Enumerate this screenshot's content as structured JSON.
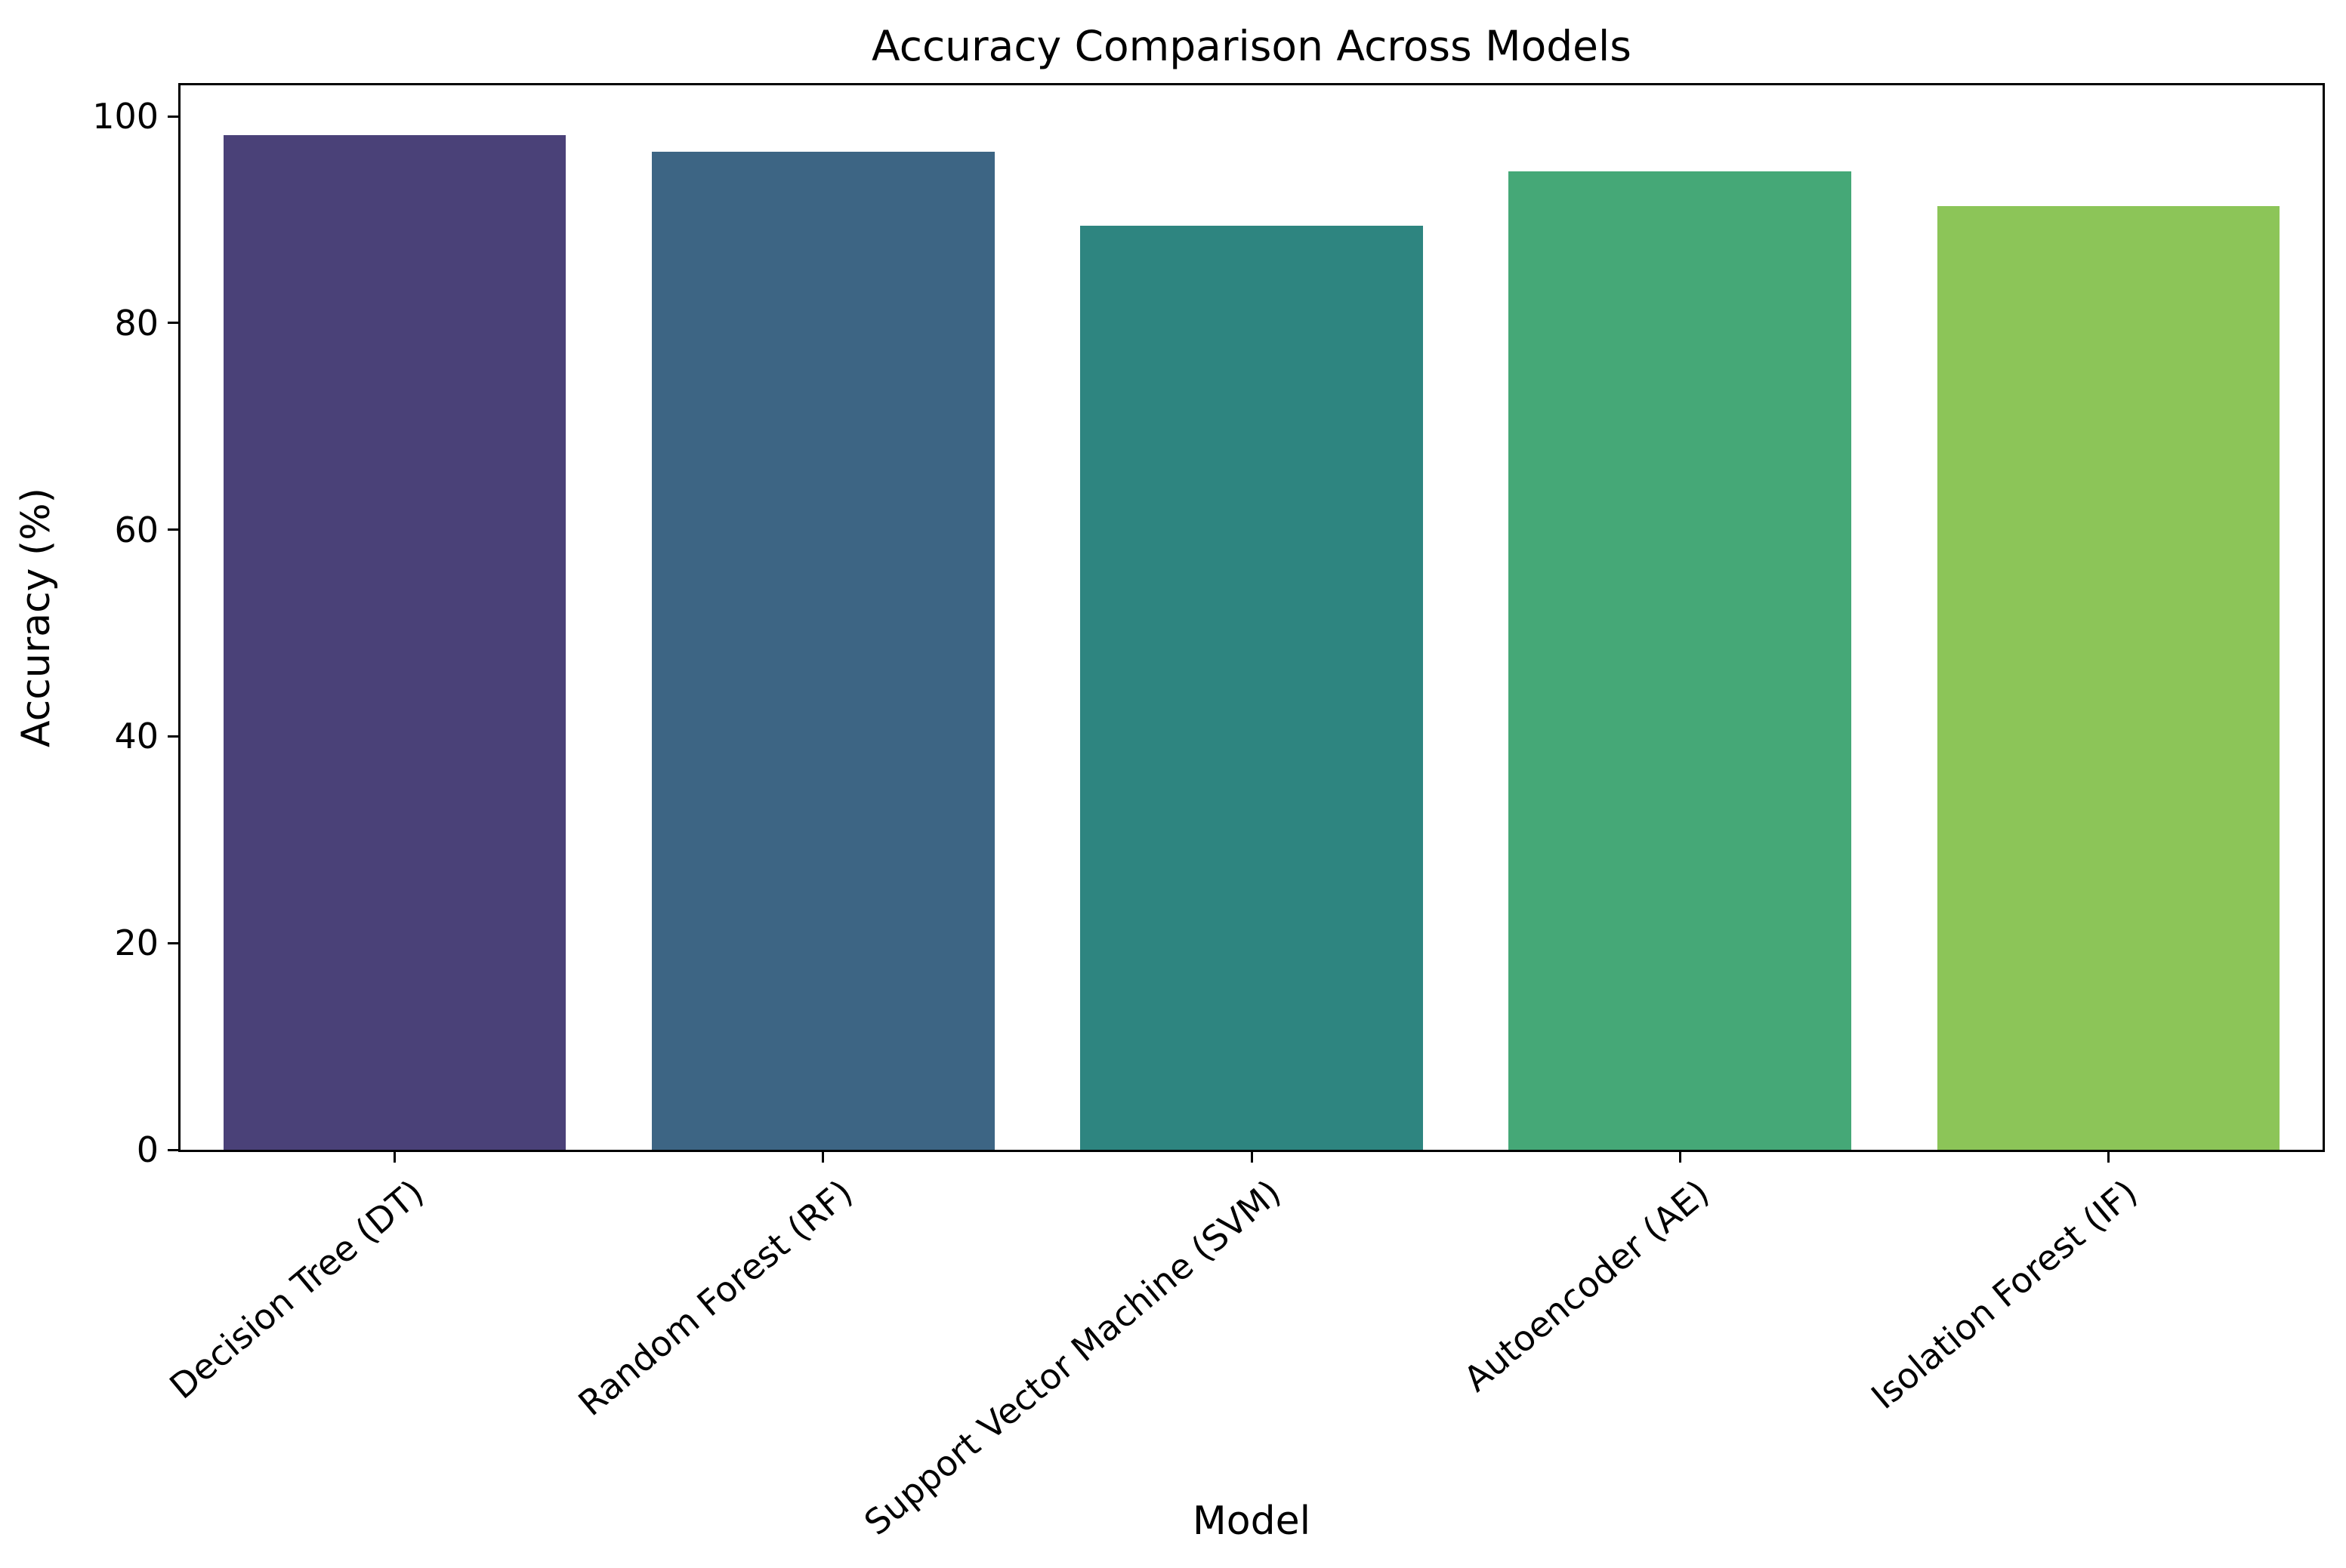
{
  "chart_data": {
    "type": "bar",
    "title": "Accuracy Comparison Across Models",
    "xlabel": "Model",
    "ylabel": "Accuracy (%)",
    "categories": [
      "Decision Tree (DT)",
      "Random Forest (RF)",
      "Support Vector Machine (SVM)",
      "Autoencoder (AE)",
      "Isolation Forest (IF)"
    ],
    "values": [
      98.2,
      96.6,
      89.4,
      94.7,
      91.3
    ],
    "bar_colors": [
      "#4a4178",
      "#3d6584",
      "#2e8580",
      "#45a877",
      "#8cc558"
    ],
    "yticks": [
      0,
      20,
      40,
      60,
      80,
      100
    ],
    "ylim": [
      0,
      103
    ],
    "grid": false,
    "bar_width_fraction": 0.8,
    "xtick_rotation_deg": 40,
    "axis_color": "#000000",
    "background_color": "#ffffff"
  }
}
